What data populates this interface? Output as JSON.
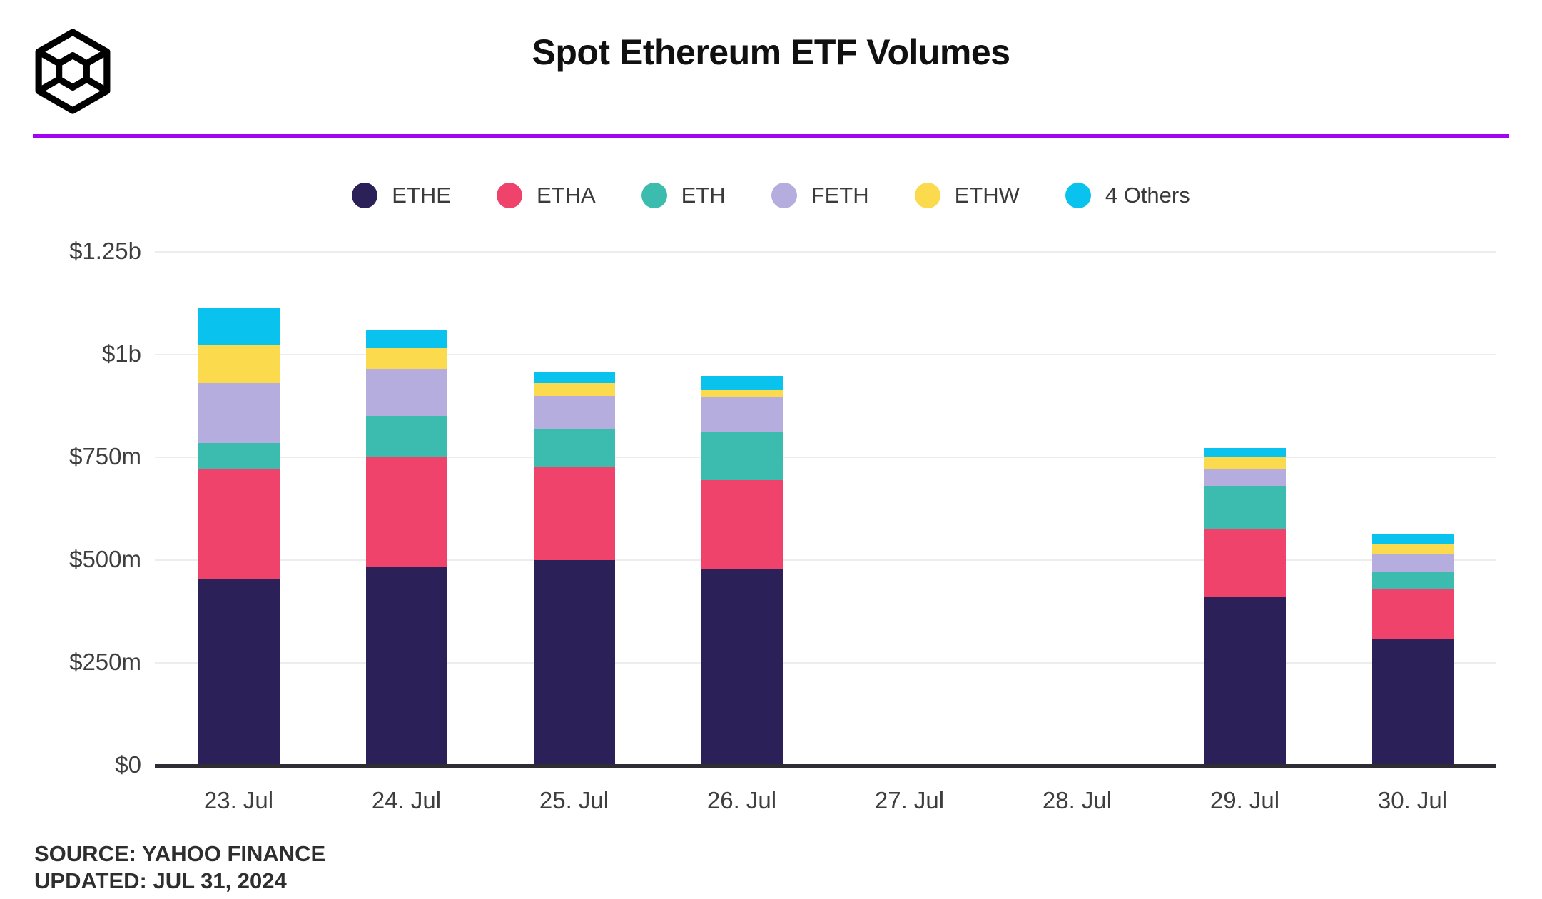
{
  "page": {
    "title": "Spot Ethereum ETF Volumes",
    "source_line1": "SOURCE: YAHOO FINANCE",
    "source_line2": "UPDATED: JUL 31, 2024",
    "accent_line_color": "#a203f0",
    "logo": "wireframe-cube"
  },
  "chart_data": {
    "type": "bar",
    "stacked": true,
    "title": "Spot Ethereum ETF Volumes",
    "unit": "USD millions",
    "categories": [
      "23. Jul",
      "24. Jul",
      "25. Jul",
      "26. Jul",
      "27. Jul",
      "28. Jul",
      "29. Jul",
      "30. Jul"
    ],
    "series": [
      {
        "name": "ETHE",
        "color": "#2b2158",
        "values": [
          455,
          485,
          500,
          480,
          0,
          0,
          410,
          307
        ]
      },
      {
        "name": "ETHA",
        "color": "#ef436b",
        "values": [
          265,
          265,
          225,
          215,
          0,
          0,
          165,
          122
        ]
      },
      {
        "name": "ETH",
        "color": "#3cbcae",
        "values": [
          65,
          100,
          95,
          115,
          0,
          0,
          105,
          44
        ]
      },
      {
        "name": "FETH",
        "color": "#b6addf",
        "values": [
          145,
          115,
          80,
          85,
          0,
          0,
          43,
          42
        ]
      },
      {
        "name": "ETHW",
        "color": "#fbdb4d",
        "values": [
          95,
          50,
          30,
          20,
          0,
          0,
          29,
          25
        ]
      },
      {
        "name": "4 Others",
        "color": "#09c2ee",
        "values": [
          90,
          45,
          28,
          33,
          0,
          0,
          20,
          22
        ]
      }
    ],
    "totals": [
      1115,
      1060,
      958,
      948,
      0,
      0,
      772,
      562
    ],
    "y_ticks": [
      "$0",
      "$250m",
      "$500m",
      "$750m",
      "$1b",
      "$1.25b"
    ],
    "y_tick_values": [
      0,
      250,
      500,
      750,
      1000,
      1250
    ],
    "ylim": [
      0,
      1250
    ],
    "grid": true,
    "legend_position": "top"
  }
}
